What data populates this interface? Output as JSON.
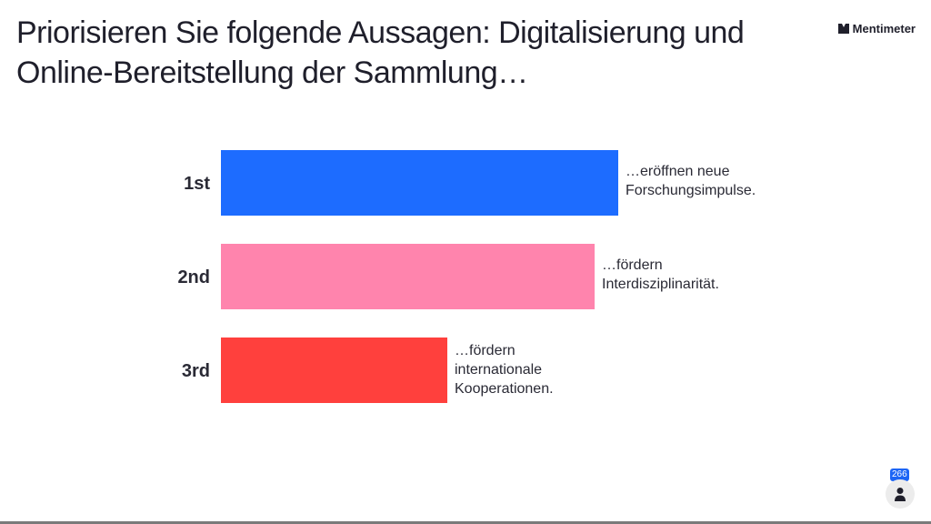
{
  "title": "Priorisieren Sie folgende Aussagen: Digitalisierung und Online-Bereitstellung der Sammlung…",
  "brand": {
    "name": "Mentimeter"
  },
  "participants": {
    "count": "266",
    "icon": "person-icon"
  },
  "colors": {
    "first": "#1d6cff",
    "second": "#ff84ad",
    "third": "#ff403d",
    "accent": "#1d65f5"
  },
  "chart_data": {
    "type": "bar",
    "orientation": "horizontal",
    "title": "Priorisieren Sie folgende Aussagen: Digitalisierung und Online-Bereitstellung der Sammlung…",
    "categories": [
      "1st",
      "2nd",
      "3rd"
    ],
    "values": [
      1.0,
      0.94,
      0.57
    ],
    "value_scale": "relative score, top item = 1.0",
    "item_labels": [
      [
        "…eröffnen neue",
        "Forschungsimpulse."
      ],
      [
        "…fördern",
        "Interdisziplinarität."
      ],
      [
        "…fördern",
        "internationale",
        "Kooperationen."
      ]
    ],
    "xlabel": "",
    "ylabel": "",
    "grid": false
  }
}
